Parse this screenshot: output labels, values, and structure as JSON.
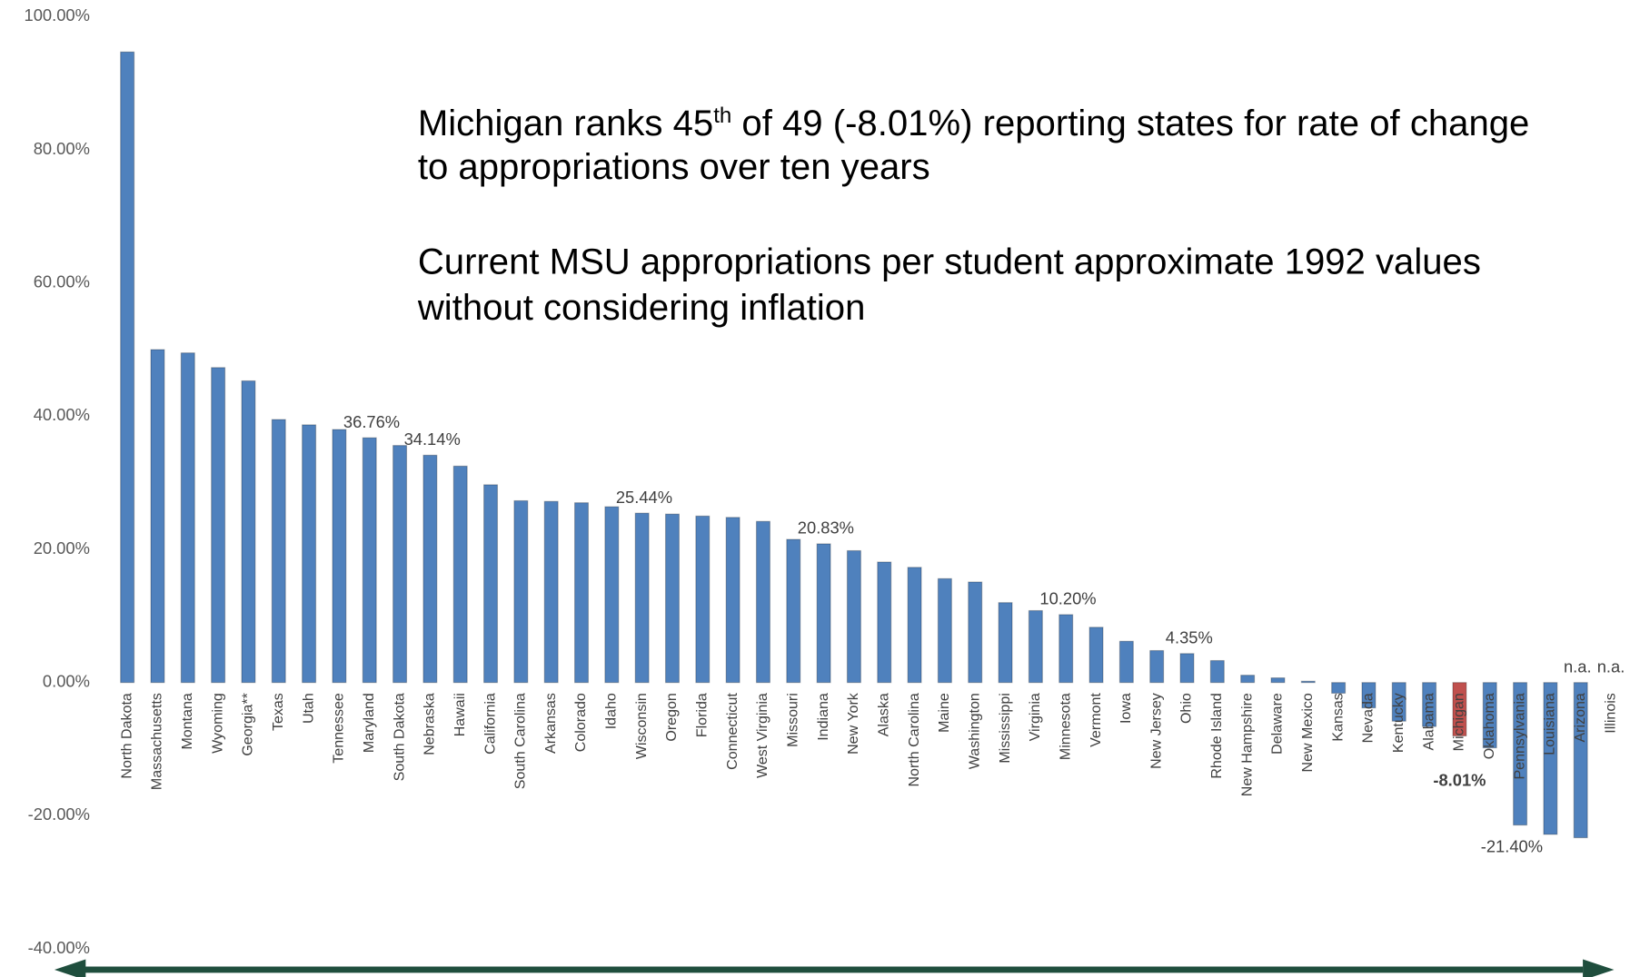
{
  "chart_data": {
    "type": "bar",
    "categories": [
      "North Dakota",
      "Massachusetts",
      "Montana",
      "Wyoming",
      "Georgia**",
      "Texas",
      "Utah",
      "Tennessee",
      "Maryland",
      "South Dakota",
      "Nebraska",
      "Hawaii",
      "California",
      "South Carolina",
      "Arkansas",
      "Colorado",
      "Idaho",
      "Wisconsin",
      "Oregon",
      "Florida",
      "Connecticut",
      "West Virginia",
      "Missouri",
      "Indiana",
      "New York",
      "Alaska",
      "North Carolina",
      "Maine",
      "Washington",
      "Mississippi",
      "Virginia",
      "Minnesota",
      "Vermont",
      "Iowa",
      "New Jersey",
      "Ohio",
      "Rhode Island",
      "New Hampshire",
      "Delaware",
      "New Mexico",
      "Kansas",
      "Nevada",
      "Kentucky",
      "Alabama",
      "Michigan",
      "Oklahoma",
      "Pennsylvania",
      "Louisiana",
      "Arizona",
      "Illinois"
    ],
    "values": [
      94.7,
      50.0,
      49.5,
      47.3,
      45.3,
      39.5,
      38.7,
      38.0,
      36.76,
      35.6,
      34.14,
      32.5,
      29.7,
      27.3,
      27.2,
      27.0,
      26.4,
      25.44,
      25.3,
      25.0,
      24.8,
      24.2,
      21.5,
      20.83,
      19.8,
      18.1,
      17.3,
      15.6,
      15.1,
      12.0,
      10.8,
      10.2,
      8.3,
      6.2,
      4.8,
      4.35,
      3.3,
      1.1,
      0.7,
      0.2,
      -1.6,
      -3.8,
      -5.8,
      -6.6,
      -8.01,
      -9.8,
      -21.4,
      -22.8,
      -23.3,
      null
    ],
    "value_labels": [
      null,
      null,
      null,
      null,
      null,
      null,
      null,
      null,
      "36.76%",
      null,
      "34.14%",
      null,
      null,
      null,
      null,
      null,
      null,
      "25.44%",
      null,
      null,
      null,
      null,
      null,
      "20.83%",
      null,
      null,
      null,
      null,
      null,
      null,
      null,
      "10.20%",
      null,
      null,
      null,
      "4.35%",
      null,
      null,
      null,
      null,
      null,
      null,
      null,
      null,
      "-8.01%",
      null,
      "-21.40%",
      null,
      null,
      "n.a."
    ],
    "color": "#4f81bd",
    "highlight_color": "#c0504d",
    "highlight_category": "Michigan",
    "ylim": [
      -40,
      100
    ],
    "yticks": [
      {
        "value": -40,
        "label": "-40.00%"
      },
      {
        "value": -20,
        "label": "-20.00%"
      },
      {
        "value": 0,
        "label": "0.00%"
      },
      {
        "value": 20,
        "label": "20.00%"
      },
      {
        "value": 40,
        "label": "40.00%"
      },
      {
        "value": 60,
        "label": "60.00%"
      },
      {
        "value": 80,
        "label": "80.00%"
      },
      {
        "value": 100,
        "label": "100.00%"
      }
    ],
    "grid": false,
    "annotations": [
      "n.a."
    ],
    "notes": {
      "line1_a": "Michigan ranks 45",
      "line1_sup": "th",
      "line1_b": " of 49 (-8.01%) reporting states for rate of change",
      "line2": "to appropriations over ten years",
      "line3": "Current MSU appropriations per student approximate 1992 values",
      "line4": "without considering inflation"
    }
  }
}
